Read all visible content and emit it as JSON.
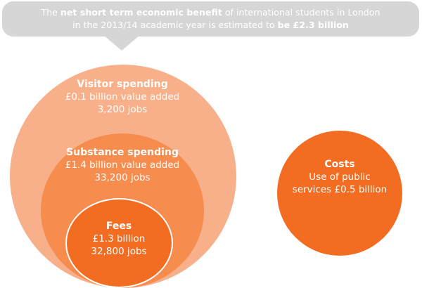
{
  "callout": {
    "line1_pre": "The ",
    "line1_bold": "net short term economic benefit",
    "line1_post": " of international students in London",
    "line2_pre": "in the 2013/14 academic year is estimated to ",
    "line2_bold": "be £2.3 billion"
  },
  "visitor": {
    "title": "Visitor spending",
    "value": "£0.1 billion value added",
    "jobs": "3,200 jobs"
  },
  "substance": {
    "title": "Substance spending",
    "value": "£1.4 billion value added",
    "jobs": "33,200 jobs"
  },
  "fees": {
    "title": "Fees",
    "value": "£1.3 billion",
    "jobs": "32,800 jobs"
  },
  "costs": {
    "title": "Costs",
    "line1": "Use of public",
    "line2": "services £0.5 billion"
  },
  "colors": {
    "visitor": "#f8b08a",
    "substance": "#f68c4e",
    "fees": "#f26d22",
    "costs": "#f26d22",
    "callout": "#d6d6d6"
  }
}
